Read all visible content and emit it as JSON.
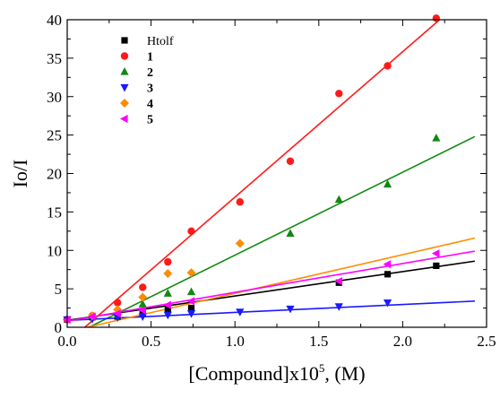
{
  "chart_data": {
    "type": "scatter",
    "xlabel": "[Compound]x10",
    "xlabel_superscript": "5",
    "xlabel_suffix": ", (M)",
    "ylabel": "Io/I",
    "xlim": [
      0.0,
      2.5
    ],
    "ylim": [
      0,
      40
    ],
    "xticks": [
      "0.0",
      "0.5",
      "1.0",
      "1.5",
      "2.0",
      "2.5"
    ],
    "yticks": [
      "0",
      "5",
      "10",
      "15",
      "20",
      "25",
      "30",
      "35",
      "40"
    ],
    "grid": false,
    "legend_position": "top-left",
    "series": [
      {
        "name": "Htolf",
        "color": "#000000",
        "marker": "square",
        "x": [
          0.0,
          0.15,
          0.3,
          0.45,
          0.6,
          0.74,
          1.62,
          1.91,
          2.2
        ],
        "y": [
          1.0,
          1.3,
          1.4,
          1.8,
          2.3,
          2.5,
          5.8,
          6.9,
          8.0
        ],
        "fit": {
          "x": [
            0.0,
            2.43
          ],
          "y": [
            0.9,
            8.6
          ]
        }
      },
      {
        "name": "1",
        "color": "#ff1a1a",
        "marker": "circle",
        "x": [
          0.0,
          0.15,
          0.3,
          0.45,
          0.6,
          0.74,
          1.03,
          1.33,
          1.62,
          1.91,
          2.2
        ],
        "y": [
          1.0,
          1.5,
          3.2,
          5.2,
          8.5,
          12.5,
          16.3,
          21.6,
          30.4,
          34.0,
          40.2
        ],
        "fit": {
          "x": [
            0.105,
            2.22
          ],
          "y": [
            0.0,
            40.0
          ]
        }
      },
      {
        "name": "2",
        "color": "#118811",
        "marker": "triangle-up",
        "x": [
          0.15,
          0.3,
          0.45,
          0.6,
          0.74,
          1.33,
          1.62,
          1.91,
          2.2
        ],
        "y": [
          1.5,
          1.6,
          3.0,
          4.4,
          4.6,
          12.2,
          16.6,
          18.6,
          24.6
        ],
        "fit": {
          "x": [
            0.13,
            2.43
          ],
          "y": [
            0.0,
            24.8
          ]
        }
      },
      {
        "name": "3",
        "color": "#1a1aff",
        "marker": "triangle-down",
        "x": [
          0.0,
          0.15,
          0.3,
          0.45,
          0.6,
          0.74,
          1.03,
          1.33,
          1.62,
          1.91
        ],
        "y": [
          1.0,
          1.1,
          1.3,
          1.4,
          1.6,
          1.8,
          2.0,
          2.4,
          2.7,
          3.2
        ],
        "fit": {
          "x": [
            0.0,
            2.43
          ],
          "y": [
            0.9,
            3.4
          ]
        }
      },
      {
        "name": "4",
        "color": "#ff8c00",
        "marker": "diamond",
        "x": [
          0.15,
          0.3,
          0.45,
          0.6,
          0.74,
          1.03
        ],
        "y": [
          1.5,
          2.3,
          3.9,
          7.0,
          7.1,
          10.9
        ],
        "fit": {
          "x": [
            0.12,
            2.43
          ],
          "y": [
            0.0,
            11.6
          ]
        }
      },
      {
        "name": "5",
        "color": "#ff00ff",
        "marker": "triangle-left",
        "x": [
          0.0,
          0.15,
          0.3,
          0.45,
          0.6,
          0.74,
          1.62,
          1.91,
          2.2
        ],
        "y": [
          1.0,
          1.4,
          1.8,
          2.2,
          2.9,
          3.4,
          6.0,
          8.2,
          9.6
        ],
        "fit": {
          "x": [
            0.0,
            2.43
          ],
          "y": [
            0.8,
            9.9
          ]
        }
      }
    ]
  }
}
